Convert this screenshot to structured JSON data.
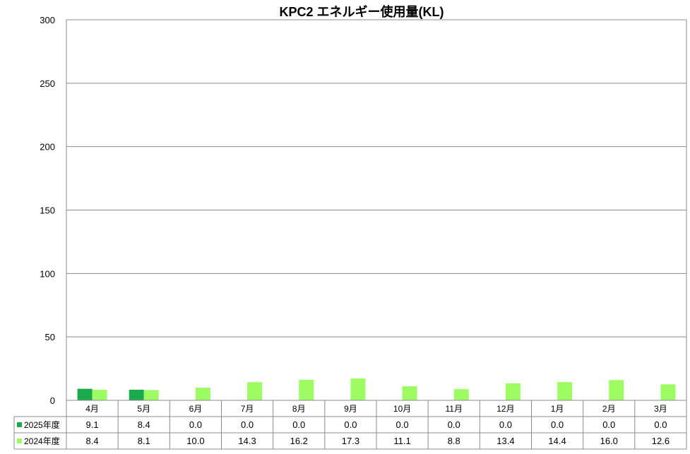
{
  "chart_data": {
    "type": "bar",
    "title": "KPC2 エネルギー使用量(KL)",
    "categories": [
      "4月",
      "5月",
      "6月",
      "7月",
      "8月",
      "9月",
      "10月",
      "11月",
      "12月",
      "1月",
      "2月",
      "3月"
    ],
    "series": [
      {
        "name": "2025年度",
        "color": "#1aaa4b",
        "values": [
          9.1,
          8.4,
          0.0,
          0.0,
          0.0,
          0.0,
          0.0,
          0.0,
          0.0,
          0.0,
          0.0,
          0.0
        ],
        "labels": [
          "9.1",
          "8.4",
          "0.0",
          "0.0",
          "0.0",
          "0.0",
          "0.0",
          "0.0",
          "0.0",
          "0.0",
          "0.0",
          "0.0"
        ]
      },
      {
        "name": "2024年度",
        "color": "#9cfc62",
        "values": [
          8.4,
          8.1,
          10.0,
          14.3,
          16.2,
          17.3,
          11.1,
          8.8,
          13.4,
          14.4,
          16.0,
          12.6
        ],
        "labels": [
          "8.4",
          "8.1",
          "10.0",
          "14.3",
          "16.2",
          "17.3",
          "11.1",
          "8.8",
          "13.4",
          "14.4",
          "16.0",
          "12.6"
        ]
      }
    ],
    "yticks": [
      "0",
      "50",
      "100",
      "150",
      "200",
      "250",
      "300"
    ],
    "ylim": [
      0,
      300
    ],
    "grid": true,
    "legend": "data-table",
    "data_table": true
  }
}
